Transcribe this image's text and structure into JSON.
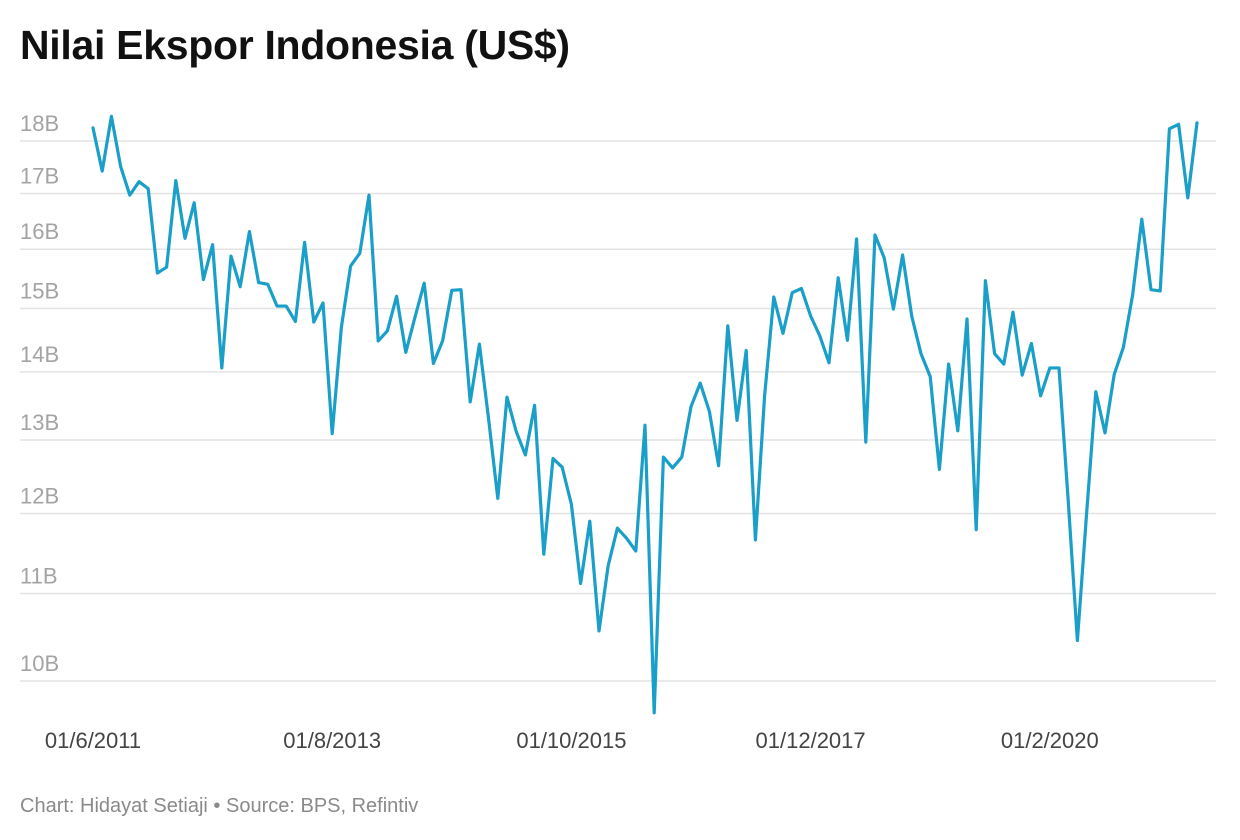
{
  "title": "Nilai Ekspor Indonesia (US$)",
  "footer": {
    "credit": "Chart: Hidayat Setiaji",
    "separator": " • ",
    "source": "Source: BPS, Refintiv"
  },
  "colors": {
    "line": "#1a9fc9",
    "grid": "#e3e3e3",
    "ytick": "#a3a3a3",
    "xtick": "#444444"
  },
  "chart_data": {
    "type": "line",
    "title": "Nilai Ekspor Indonesia (US$)",
    "xlabel": "",
    "ylabel": "",
    "y_scale": "log",
    "ylim": [
      9.6,
      18.6
    ],
    "grid": true,
    "y_ticks": [
      {
        "value": 10,
        "label": "10B"
      },
      {
        "value": 11,
        "label": "11B"
      },
      {
        "value": 12,
        "label": "12B"
      },
      {
        "value": 13,
        "label": "13B"
      },
      {
        "value": 14,
        "label": "14B"
      },
      {
        "value": 15,
        "label": "15B"
      },
      {
        "value": 16,
        "label": "16B"
      },
      {
        "value": 17,
        "label": "17B"
      },
      {
        "value": 18,
        "label": "18B"
      }
    ],
    "x_ticks": [
      "01/6/2011",
      "01/8/2013",
      "01/10/2015",
      "01/12/2017",
      "01/2/2020"
    ],
    "x_tick_index": [
      0,
      26,
      52,
      78,
      104
    ],
    "series": [
      {
        "name": "",
        "x_start": "01/6/2011",
        "frequency": "monthly",
        "values": [
          18.26,
          17.42,
          18.49,
          17.51,
          16.97,
          17.22,
          17.09,
          15.59,
          15.69,
          17.24,
          16.19,
          16.83,
          15.48,
          16.08,
          14.06,
          15.88,
          15.36,
          16.31,
          15.43,
          15.4,
          15.04,
          15.04,
          14.79,
          16.12,
          14.78,
          15.09,
          13.09,
          14.7,
          15.71,
          15.93,
          16.97,
          14.48,
          14.64,
          15.2,
          14.3,
          14.86,
          15.42,
          14.13,
          14.48,
          15.3,
          15.31,
          13.55,
          14.43,
          13.3,
          12.2,
          13.62,
          13.12,
          12.79,
          13.5,
          11.48,
          12.74,
          12.62,
          12.12,
          11.12,
          11.9,
          10.56,
          11.34,
          11.81,
          11.68,
          11.52,
          13.21,
          9.66,
          12.76,
          12.61,
          12.76,
          13.48,
          13.83,
          13.41,
          12.64,
          14.72,
          13.28,
          14.33,
          11.66,
          13.64,
          15.19,
          14.6,
          15.26,
          15.33,
          14.88,
          14.56,
          14.14,
          15.51,
          14.49,
          16.18,
          12.97,
          16.25,
          15.85,
          14.99,
          15.9,
          14.87,
          14.28,
          13.93,
          12.59,
          14.12,
          13.13,
          14.83,
          11.79,
          15.46,
          14.28,
          14.12,
          14.94,
          13.95,
          14.44,
          13.64,
          14.06,
          14.06,
          12.17,
          10.45,
          12.0,
          13.7,
          13.1,
          13.96,
          14.38,
          15.22,
          16.53,
          15.31,
          15.29,
          18.24,
          18.33,
          16.92,
          18.36
        ]
      }
    ]
  }
}
